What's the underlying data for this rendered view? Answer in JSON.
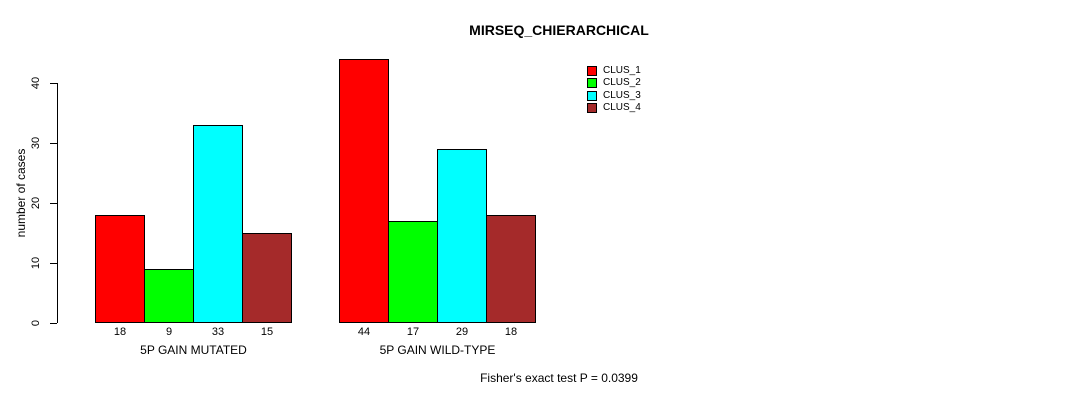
{
  "chart_data": {
    "type": "bar",
    "title": "MIRSEQ_CHIERARCHICAL",
    "ylabel": "number of cases",
    "xlabel": "",
    "categories": [
      "5P GAIN MUTATED",
      "5P GAIN WILD-TYPE"
    ],
    "series": [
      {
        "name": "CLUS_1",
        "color": "#ff0000",
        "values": [
          18,
          44
        ]
      },
      {
        "name": "CLUS_2",
        "color": "#00ff00",
        "values": [
          9,
          17
        ]
      },
      {
        "name": "CLUS_3",
        "color": "#00ffff",
        "values": [
          33,
          29
        ]
      },
      {
        "name": "CLUS_4",
        "color": "#a52a2a",
        "values": [
          15,
          18
        ]
      }
    ],
    "yticks": [
      0,
      10,
      20,
      30,
      40
    ],
    "ylim": [
      0,
      44
    ],
    "bar_value_labels_shown": true,
    "legend_position": "top-right",
    "grid": false,
    "annotation": "Fisher's exact test P = 0.0399"
  }
}
